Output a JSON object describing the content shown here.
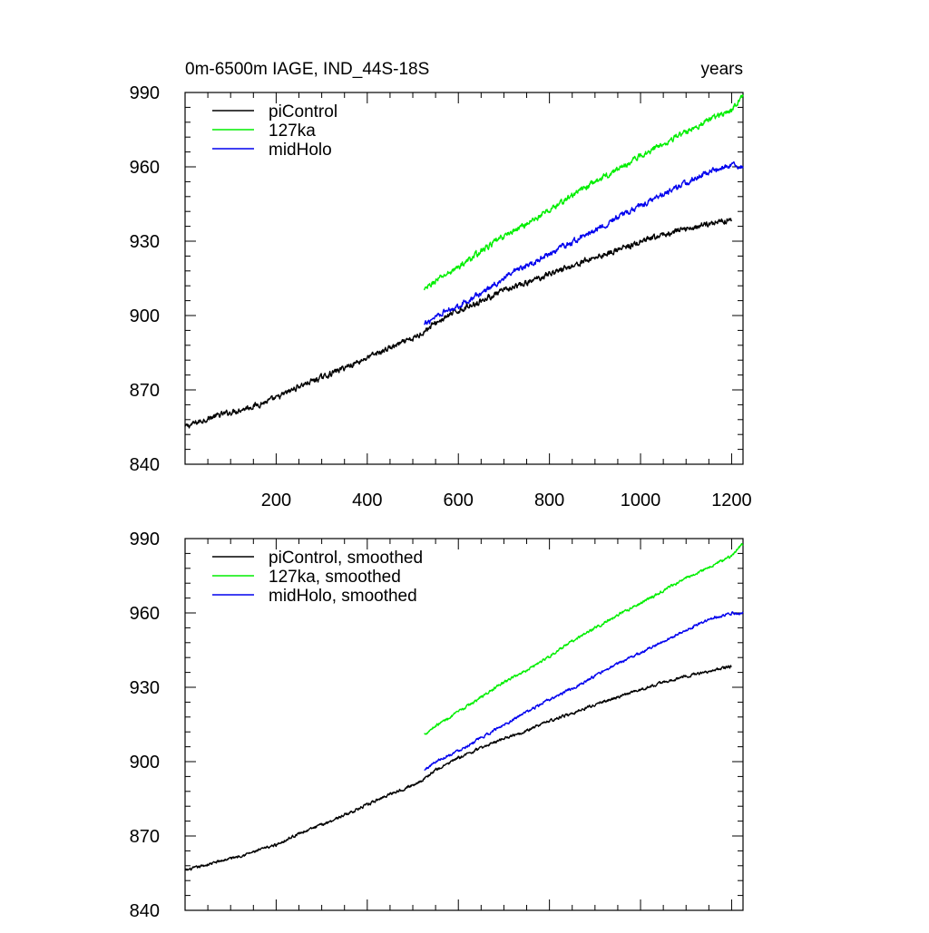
{
  "figure": {
    "title_left": "0m-6500m IAGE, IND_44S-18S",
    "title_right": "years"
  },
  "colors": {
    "piControl": "#000000",
    "127ka": "#00ee00",
    "midHolo": "#0000ee",
    "axis": "#000000",
    "background": "#ffffff"
  },
  "chart_data": [
    {
      "type": "line",
      "panel": "top",
      "title": "0m-6500m IAGE, IND_44S-18S",
      "xlabel": "years",
      "ylabel": "",
      "xlim": [
        0,
        1225
      ],
      "ylim": [
        840,
        990
      ],
      "xticks": [
        200,
        400,
        600,
        800,
        1000,
        1200
      ],
      "xtick_labels": [
        "200",
        "400",
        "600",
        "800",
        "1000",
        "1200"
      ],
      "yticks": [
        840,
        870,
        900,
        930,
        960,
        990
      ],
      "ytick_labels": [
        "840",
        "870",
        "900",
        "930",
        "960",
        "990"
      ],
      "show_xtick_labels": true,
      "legend_position": "top-left",
      "series": [
        {
          "name": "piControl",
          "color": "#000000",
          "x": [
            0,
            50,
            100,
            150,
            200,
            250,
            300,
            350,
            400,
            450,
            500,
            520,
            550,
            600,
            650,
            700,
            750,
            800,
            850,
            900,
            950,
            1000,
            1050,
            1100,
            1150,
            1200
          ],
          "y": [
            855,
            858.5,
            861,
            863.5,
            866.5,
            871.5,
            875,
            879,
            883,
            887,
            890.5,
            893,
            897,
            902,
            906,
            910,
            913,
            917,
            920,
            923.5,
            926.5,
            929.5,
            932.5,
            935,
            937,
            939
          ]
        },
        {
          "name": "127ka",
          "color": "#00ee00",
          "x": [
            525,
            550,
            600,
            650,
            700,
            750,
            800,
            850,
            900,
            950,
            1000,
            1050,
            1100,
            1150,
            1200,
            1225
          ],
          "y": [
            910,
            914,
            919.5,
            926,
            932,
            937,
            942.5,
            948.5,
            954,
            959,
            964.5,
            969.5,
            974,
            979,
            983,
            989
          ]
        },
        {
          "name": "midHolo",
          "color": "#0000ee",
          "x": [
            525,
            550,
            600,
            650,
            700,
            750,
            800,
            850,
            900,
            950,
            1000,
            1050,
            1100,
            1150,
            1200,
            1225
          ],
          "y": [
            896,
            900,
            904,
            909,
            915,
            920,
            925,
            929.5,
            934.5,
            939.5,
            944.5,
            949,
            953.5,
            958,
            960.5,
            960
          ]
        }
      ],
      "legend": [
        "piControl",
        "127ka",
        "midHolo"
      ]
    },
    {
      "type": "line",
      "panel": "bottom",
      "title": "",
      "xlabel": "",
      "ylabel": "",
      "xlim": [
        0,
        1225
      ],
      "ylim": [
        840,
        990
      ],
      "xticks": [
        200,
        400,
        600,
        800,
        1000,
        1200
      ],
      "xtick_labels": [],
      "yticks": [
        840,
        870,
        900,
        930,
        960,
        990
      ],
      "ytick_labels": [
        "840",
        "870",
        "900",
        "930",
        "960",
        "990"
      ],
      "show_xtick_labels": false,
      "legend_position": "top-left",
      "series": [
        {
          "name": "piControl, smoothed",
          "color": "#000000",
          "x": [
            0,
            50,
            100,
            150,
            200,
            250,
            300,
            350,
            400,
            450,
            500,
            520,
            550,
            600,
            650,
            700,
            750,
            800,
            850,
            900,
            950,
            1000,
            1050,
            1100,
            1150,
            1200
          ],
          "y": [
            856,
            858.5,
            861,
            863.5,
            866.5,
            871,
            874.5,
            878.5,
            882.5,
            887,
            890.5,
            892.5,
            896.5,
            901.5,
            905.5,
            909.5,
            912.5,
            916.5,
            919.5,
            923,
            926,
            929,
            932,
            934.5,
            936.5,
            938.5
          ]
        },
        {
          "name": "127ka, smoothed",
          "color": "#00ee00",
          "x": [
            525,
            550,
            600,
            650,
            700,
            750,
            800,
            850,
            900,
            950,
            1000,
            1050,
            1100,
            1150,
            1200,
            1225
          ],
          "y": [
            911,
            914.5,
            920,
            926,
            932,
            937,
            942.5,
            948.5,
            954,
            959,
            964,
            969,
            974,
            978.5,
            983,
            988
          ]
        },
        {
          "name": "midHolo, smoothed",
          "color": "#0000ee",
          "x": [
            525,
            550,
            600,
            650,
            700,
            750,
            800,
            850,
            900,
            950,
            1000,
            1050,
            1100,
            1150,
            1200,
            1225
          ],
          "y": [
            896.5,
            900,
            904.5,
            909.5,
            915,
            920,
            925,
            929.5,
            934.5,
            939.5,
            944,
            948.5,
            953,
            957.5,
            960,
            960
          ]
        }
      ],
      "legend": [
        "piControl, smoothed",
        "127ka, smoothed",
        "midHolo, smoothed"
      ]
    }
  ]
}
